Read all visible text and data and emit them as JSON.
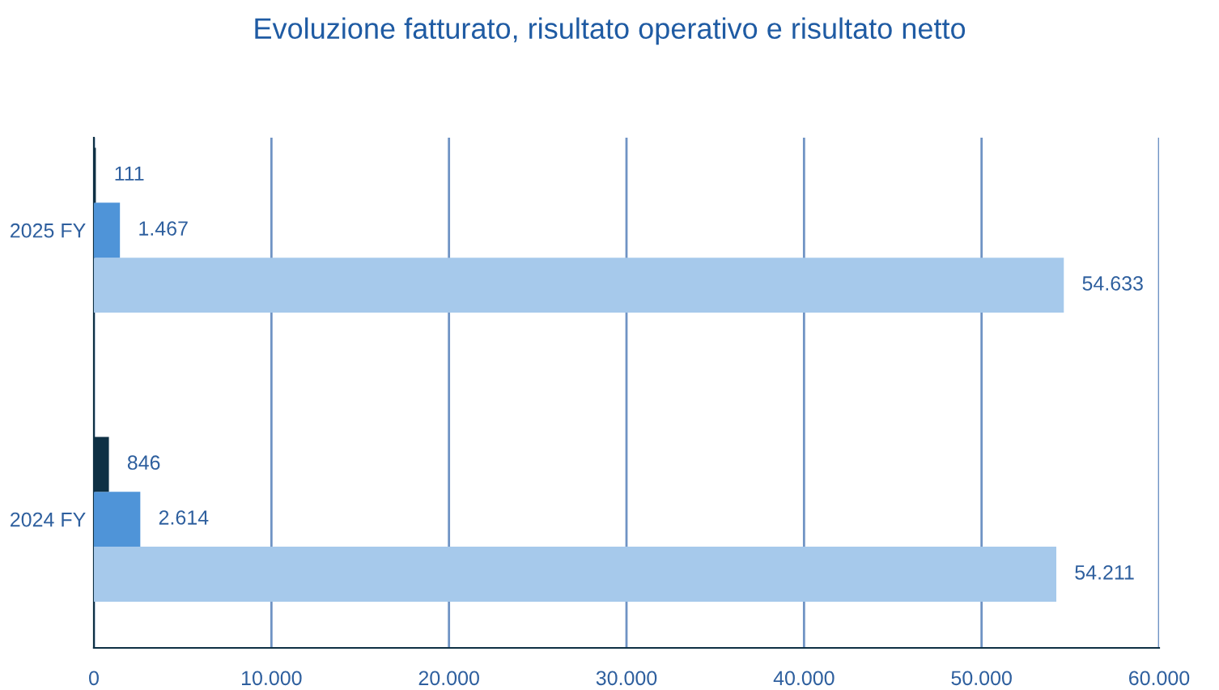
{
  "chart_data": {
    "type": "bar",
    "orientation": "horizontal",
    "title": "Evoluzione fatturato, risultato operativo e risultato netto",
    "categories": [
      "2025 FY",
      "2024 FY"
    ],
    "series": [
      {
        "color": "#a6c9eb",
        "values": [
          54633,
          54211
        ],
        "value_labels": [
          "54.633",
          "54.211"
        ]
      },
      {
        "color": "#4f94d8",
        "values": [
          1467,
          2614
        ],
        "value_labels": [
          "1.467",
          "2.614"
        ]
      },
      {
        "color": "#0e3044",
        "values": [
          111,
          846
        ],
        "value_labels": [
          "111",
          "846"
        ]
      }
    ],
    "xlim": [
      0,
      60000
    ],
    "xticks": [
      0,
      {
        "value": 10000,
        "label": "10.000"
      },
      {
        "value": 20000,
        "label": "20.000"
      },
      {
        "value": 30000,
        "label": "30.000"
      },
      {
        "value": 40000,
        "label": "40.000"
      },
      {
        "value": 50000,
        "label": "50.000"
      },
      {
        "value": 60000,
        "label": "60.000"
      }
    ],
    "grid": "x",
    "legend": false
  }
}
